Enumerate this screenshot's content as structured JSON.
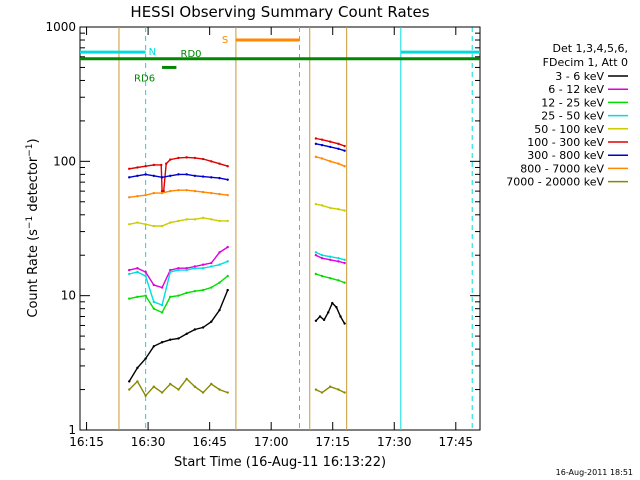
{
  "chart_data": {
    "type": "line",
    "title": "HESSI Observing Summary Count Rates",
    "xlabel": "Start Time (16-Aug-11 16:13:22)",
    "ylabel": "Count Rate (s⁻¹ detector⁻¹)",
    "ylabel_base": "Count Rate (s",
    "ylabel_sup1": "−1",
    "ylabel_mid": " detector",
    "ylabel_sup2": "−1",
    "ylabel_end": ")",
    "footer": "16-Aug-2011 18:51",
    "x_unit": "minutes after 16:13:22",
    "xlim": [
      0,
      97.5
    ],
    "ylim": [
      1,
      1000
    ],
    "yscale": "log",
    "x_ticks": [
      {
        "label": "16:15",
        "t": 1.6
      },
      {
        "label": "16:30",
        "t": 16.6
      },
      {
        "label": "16:45",
        "t": 31.6
      },
      {
        "label": "17:00",
        "t": 46.6
      },
      {
        "label": "17:15",
        "t": 61.6
      },
      {
        "label": "17:30",
        "t": 76.6
      },
      {
        "label": "17:45",
        "t": 91.6
      }
    ],
    "y_ticks": [
      {
        "label": "1",
        "v": 1
      },
      {
        "label": "10",
        "v": 10
      },
      {
        "label": "100",
        "v": 100
      },
      {
        "label": "1000",
        "v": 1000
      }
    ],
    "legend": {
      "header": [
        "Det 1,3,4,5,6,",
        "FDecim 1, Att 0"
      ],
      "placement": "right"
    },
    "series": [
      {
        "name": "3 - 6 keV",
        "color": "#000000",
        "segments": [
          {
            "x": [
              12,
              14,
              16,
              18,
              20,
              22,
              24,
              26,
              28,
              30,
              32,
              34,
              36
            ],
            "y": [
              2.3,
              2.9,
              3.4,
              4.2,
              4.5,
              4.7,
              4.8,
              5.2,
              5.6,
              5.8,
              6.4,
              7.8,
              11
            ]
          },
          {
            "x": [
              57.5,
              58.5,
              59.5,
              60.5,
              61.5,
              62.5,
              63.5,
              64.5
            ],
            "y": [
              6.5,
              7,
              6.6,
              7.5,
              8.8,
              8.2,
              7,
              6.2
            ]
          }
        ]
      },
      {
        "name": "6 - 12 keV",
        "color": "#dd00dd",
        "segments": [
          {
            "x": [
              12,
              14,
              16,
              18,
              20,
              22,
              24,
              26,
              28,
              30,
              32,
              34,
              36
            ],
            "y": [
              15.5,
              16,
              15,
              12,
              11.5,
              15.5,
              16,
              16,
              16.5,
              17,
              17.5,
              21,
              23
            ]
          },
          {
            "x": [
              57.5,
              59,
              61,
              63,
              64.5
            ],
            "y": [
              20,
              19,
              18.5,
              18,
              17.5
            ]
          }
        ]
      },
      {
        "name": "12 - 25 keV",
        "color": "#00dd00",
        "segments": [
          {
            "x": [
              12,
              14,
              16,
              18,
              20,
              22,
              24,
              26,
              28,
              30,
              32,
              34,
              36
            ],
            "y": [
              9.5,
              9.8,
              10,
              8,
              7.5,
              9.8,
              10,
              10.5,
              10.8,
              11,
              11.5,
              12.5,
              14
            ]
          },
          {
            "x": [
              57.5,
              59,
              61,
              63,
              64.5
            ],
            "y": [
              14.5,
              14,
              13.5,
              13,
              12.5
            ]
          }
        ]
      },
      {
        "name": "25 - 50 keV",
        "color": "#00dddd",
        "segments": [
          {
            "x": [
              12,
              14,
              16,
              18,
              20,
              22,
              24,
              26,
              28,
              30,
              32,
              34,
              36
            ],
            "y": [
              14.5,
              15,
              14,
              9,
              8.5,
              15,
              15.5,
              15.5,
              16,
              16,
              16.5,
              17,
              18
            ]
          },
          {
            "x": [
              57.5,
              59,
              61,
              63,
              64.5
            ],
            "y": [
              21,
              20,
              19.5,
              19,
              18.5
            ]
          }
        ]
      },
      {
        "name": "50 - 100 keV",
        "color": "#cccc00",
        "segments": [
          {
            "x": [
              12,
              14,
              16,
              18,
              20,
              22,
              24,
              26,
              28,
              30,
              32,
              34,
              36
            ],
            "y": [
              34,
              35,
              34,
              33,
              33,
              35,
              36,
              37,
              37,
              38,
              37,
              36,
              36
            ]
          },
          {
            "x": [
              57.5,
              59,
              61,
              63,
              64.5
            ],
            "y": [
              48,
              47,
              45,
              44,
              43
            ]
          }
        ]
      },
      {
        "name": "100 - 300 keV",
        "color": "#dd0000",
        "segments": [
          {
            "x": [
              12,
              14,
              16,
              18,
              19.8,
              20,
              20.4,
              21,
              22,
              24,
              26,
              28,
              30,
              32,
              34,
              36
            ],
            "y": [
              88,
              90,
              92,
              94,
              94,
              60,
              60,
              96,
              103,
              106,
              107,
              106,
              104,
              100,
              96,
              92
            ]
          },
          {
            "x": [
              57.5,
              59,
              61,
              63,
              64.5
            ],
            "y": [
              148,
              145,
              140,
              135,
              130
            ]
          }
        ]
      },
      {
        "name": "300 - 800 keV",
        "color": "#0000cc",
        "segments": [
          {
            "x": [
              12,
              14,
              16,
              18,
              20,
              22,
              24,
              26,
              28,
              30,
              32,
              34,
              36
            ],
            "y": [
              76,
              78,
              80,
              78,
              76,
              78,
              80,
              80,
              78,
              77,
              76,
              75,
              73
            ]
          },
          {
            "x": [
              57.5,
              59,
              61,
              63,
              64.5
            ],
            "y": [
              135,
              132,
              128,
              124,
              120
            ]
          }
        ]
      },
      {
        "name": "800 - 7000 keV",
        "color": "#ff8800",
        "segments": [
          {
            "x": [
              12,
              14,
              16,
              18,
              20,
              22,
              24,
              26,
              28,
              30,
              32,
              34,
              36
            ],
            "y": [
              54,
              55,
              56,
              58,
              58,
              60,
              61,
              61,
              60,
              59,
              58,
              57,
              56
            ]
          },
          {
            "x": [
              57.5,
              59,
              61,
              63,
              64.5
            ],
            "y": [
              108,
              105,
              100,
              96,
              92
            ]
          }
        ]
      },
      {
        "name": "7000 - 20000 keV",
        "color": "#888800",
        "segments": [
          {
            "x": [
              12,
              14,
              16,
              18,
              20,
              22,
              24,
              26,
              28,
              30,
              32,
              34,
              36
            ],
            "y": [
              2,
              2.3,
              1.8,
              2.1,
              1.9,
              2.2,
              2,
              2.4,
              2.1,
              1.9,
              2.2,
              2,
              1.9
            ]
          },
          {
            "x": [
              57.5,
              59,
              61,
              63,
              64.5
            ],
            "y": [
              2,
              1.9,
              2.1,
              2,
              1.9
            ]
          }
        ]
      }
    ],
    "flags": [
      {
        "label": "N",
        "color": "#00dddd",
        "level": 650,
        "from": 0,
        "to": 16,
        "gap_from": 16,
        "gap_to": 78.2,
        "resume": 78.2,
        "until": 97.5
      },
      {
        "label": "S",
        "color": "#ff8800",
        "level": 800,
        "from": 38,
        "to": 53.5
      },
      {
        "label": "RD0",
        "color": "#008800",
        "level": 580,
        "from": 0,
        "to": 97.5
      },
      {
        "label": "RD6",
        "color": "#008800",
        "level": 500,
        "from": 20,
        "to": 23.5
      }
    ],
    "attenuator_markers": [
      {
        "t": 9.5,
        "color": "#cc9933",
        "style": "solid"
      },
      {
        "t": 38,
        "color": "#cc9933",
        "style": "solid"
      },
      {
        "t": 56,
        "color": "#cc9933",
        "style": "solid"
      },
      {
        "t": 65,
        "color": "#cc9933",
        "style": "solid"
      },
      {
        "t": 53.5,
        "color": "#ff8800",
        "style": "dashed"
      },
      {
        "t": 16,
        "color": "#00dddd",
        "style": "dashed"
      },
      {
        "t": 78.2,
        "color": "#00dddd",
        "style": "solid"
      },
      {
        "t": 95.6,
        "color": "#00dddd",
        "style": "dashed"
      }
    ]
  }
}
